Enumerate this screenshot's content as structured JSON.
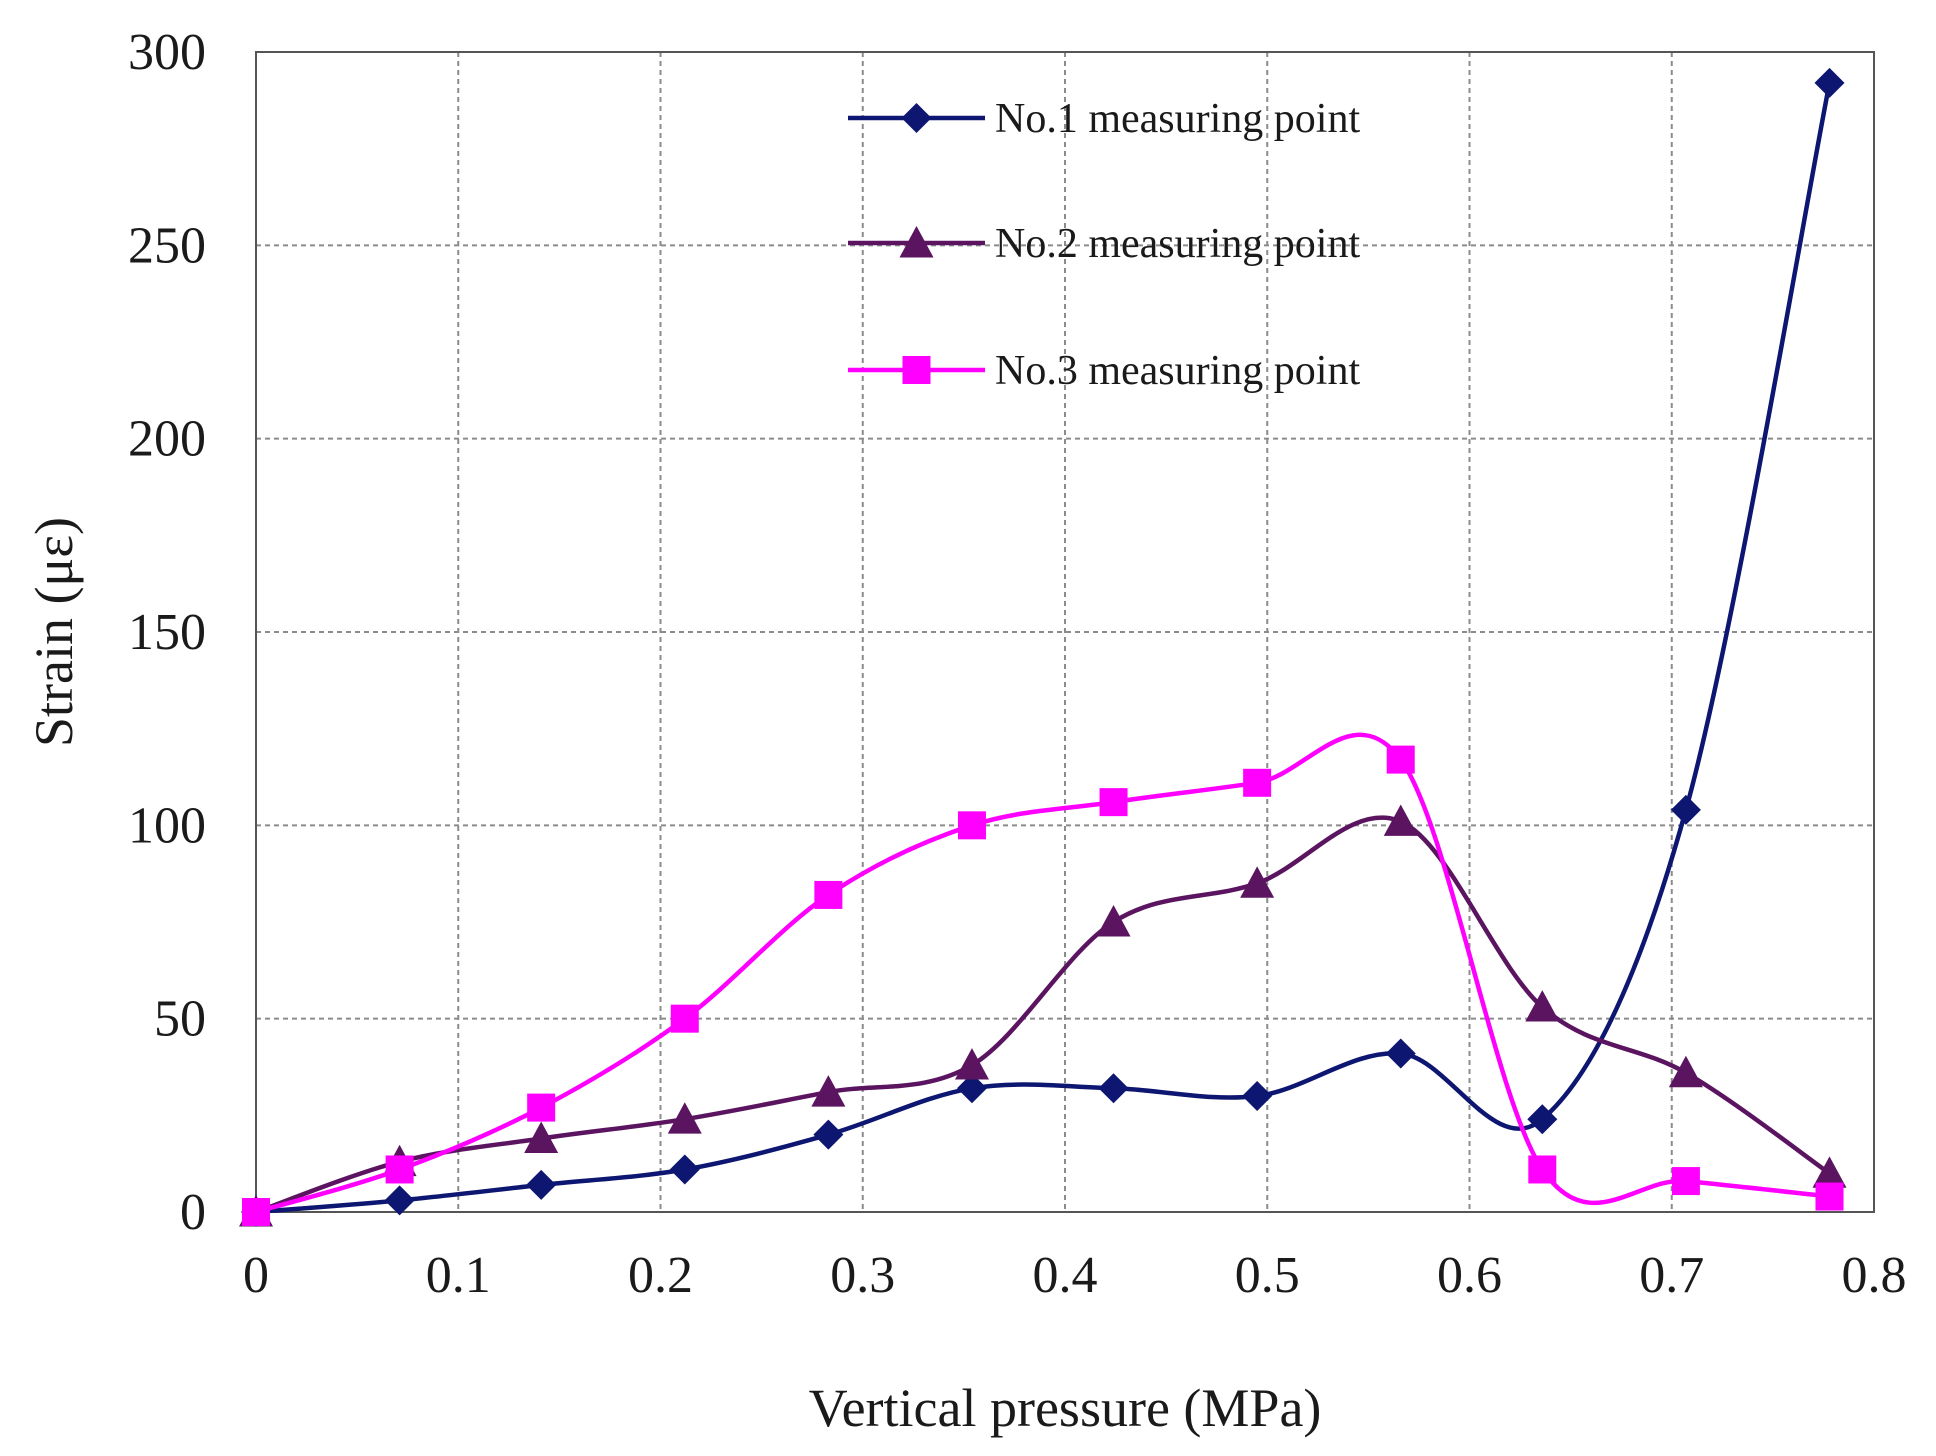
{
  "chart_data": {
    "type": "line",
    "title": "",
    "xlabel": "Vertical  pressure (MPa)",
    "ylabel": "Strain (με)",
    "xlim": [
      0,
      0.8
    ],
    "ylim": [
      0,
      300
    ],
    "xticks": [
      0,
      0.1,
      0.2,
      0.3,
      0.4,
      0.5,
      0.6,
      0.7,
      0.8
    ],
    "xtick_labels": [
      "0",
      "0.1",
      "0.2",
      "0.3",
      "0.4",
      "0.5",
      "0.6",
      "0.7",
      "0.8"
    ],
    "yticks": [
      0,
      50,
      100,
      150,
      200,
      250,
      300
    ],
    "ytick_labels": [
      "0",
      "50",
      "100",
      "150",
      "200",
      "250",
      "300"
    ],
    "grid": true,
    "smooth": true,
    "legend_position": "top-center",
    "series": [
      {
        "name": "No.1 measuring point",
        "color": "#0d1670",
        "marker": "diamond",
        "x": [
          0,
          0.071,
          0.141,
          0.212,
          0.283,
          0.354,
          0.424,
          0.495,
          0.566,
          0.636,
          0.707,
          0.778
        ],
        "y": [
          0,
          3,
          7,
          11,
          20,
          32,
          32,
          30,
          41,
          24,
          104,
          292
        ]
      },
      {
        "name": "No.2 measuring point",
        "color": "#5b1460",
        "marker": "triangle",
        "x": [
          0,
          0.071,
          0.141,
          0.212,
          0.283,
          0.354,
          0.424,
          0.495,
          0.566,
          0.636,
          0.707,
          0.778
        ],
        "y": [
          0,
          13,
          19,
          24,
          31,
          38,
          75,
          85,
          101,
          53,
          36,
          10
        ]
      },
      {
        "name": "No.3 measuring point",
        "color": "#ff00ff",
        "marker": "square",
        "x": [
          0,
          0.071,
          0.141,
          0.212,
          0.283,
          0.354,
          0.424,
          0.495,
          0.566,
          0.636,
          0.707,
          0.778
        ],
        "y": [
          0,
          11,
          27,
          50,
          82,
          100,
          106,
          111,
          117,
          11,
          8,
          4
        ]
      }
    ]
  }
}
